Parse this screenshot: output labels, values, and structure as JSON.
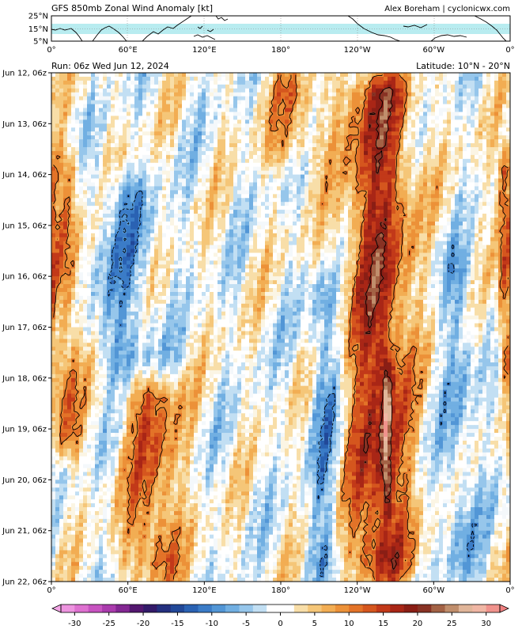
{
  "header": {
    "title": "GFS 850mb Zonal Wind Anomaly [kt]",
    "credit": "Alex Boreham | cyclonicwx.com",
    "run": "Run: 06z Wed Jun 12, 2024",
    "latitude": "Latitude: 10°N - 20°N"
  },
  "map": {
    "lat_labels": [
      "25°N",
      "15°N",
      "5°N"
    ],
    "lon_labels": [
      "0°",
      "60°E",
      "120°E",
      "180°",
      "120°W",
      "60°W",
      "0°"
    ],
    "band_color": "#b8ecf0"
  },
  "chart_data": {
    "type": "heatmap",
    "title": "GFS 850mb Zonal Wind Anomaly [kt]",
    "x_ticks": [
      "0°",
      "60°E",
      "120°E",
      "180°",
      "120°W",
      "60°W",
      "0°"
    ],
    "y_ticks": [
      "Jun 12, 06z",
      "Jun 13, 06z",
      "Jun 14, 06z",
      "Jun 15, 06z",
      "Jun 16, 06z",
      "Jun 17, 06z",
      "Jun 18, 06z",
      "Jun 19, 06z",
      "Jun 20, 06z",
      "Jun 21, 06z",
      "Jun 22, 06z"
    ],
    "colorbar": {
      "min": -32,
      "max": 32,
      "step": 2,
      "ticks": [
        -30,
        -25,
        -20,
        -15,
        -10,
        -5,
        0,
        5,
        10,
        15,
        20,
        25,
        30
      ],
      "stops": [
        [
          -32,
          "#f4a6e6"
        ],
        [
          -28,
          "#d65fc9"
        ],
        [
          -24,
          "#9b2fa3"
        ],
        [
          -20,
          "#3b0f5e"
        ],
        [
          -16,
          "#1c3b8a"
        ],
        [
          -12,
          "#2f6fc0"
        ],
        [
          -8,
          "#5ea3dd"
        ],
        [
          -4,
          "#a9d2ef"
        ],
        [
          -1,
          "#f4f8fb"
        ],
        [
          1,
          "#fbf5e4"
        ],
        [
          4,
          "#f7d28a"
        ],
        [
          8,
          "#f0a040"
        ],
        [
          12,
          "#de6420"
        ],
        [
          16,
          "#b82a16"
        ],
        [
          20,
          "#7a1a14"
        ],
        [
          24,
          "#b07a55"
        ],
        [
          28,
          "#f0c8b0"
        ],
        [
          32,
          "#f08080"
        ]
      ]
    },
    "features": [
      {
        "name": "pacific-westerly-burst",
        "lon": 257,
        "t_start": 0.0,
        "t_end": 10.0,
        "width": 26,
        "amplitude": 17
      },
      {
        "name": "pacific-core-maximum",
        "lon": 263,
        "t_start": 5.5,
        "t_end": 8.5,
        "width": 4,
        "amplitude": 12
      },
      {
        "name": "indian-ocean-westerlies",
        "lon": 80,
        "t_start": 6.0,
        "t_end": 10.0,
        "width": 22,
        "amplitude": 12
      },
      {
        "name": "africa-westerlies",
        "lon": 12,
        "t_start": 1.5,
        "t_end": 7.5,
        "width": 12,
        "amplitude": 11
      },
      {
        "name": "easterly-band-west-pacific",
        "lon": 215,
        "t_start": 4.0,
        "t_end": 10.0,
        "width": 12,
        "amplitude": -8
      },
      {
        "name": "easterly-band-asia",
        "lon": 55,
        "t_start": 2.0,
        "t_end": 6.0,
        "width": 25,
        "amplitude": -7
      },
      {
        "name": "easterly-band-east-pacific",
        "lon": 320,
        "t_start": 3.5,
        "t_end": 10.0,
        "width": 14,
        "amplitude": -6
      },
      {
        "name": "westerlies-dateline",
        "lon": 190,
        "t_start": 0.0,
        "t_end": 1.8,
        "width": 22,
        "amplitude": 8
      },
      {
        "name": "westerlies-east-atlantic",
        "lon": 356,
        "t_start": 1.5,
        "t_end": 6.0,
        "width": 6,
        "amplitude": 12
      }
    ]
  }
}
